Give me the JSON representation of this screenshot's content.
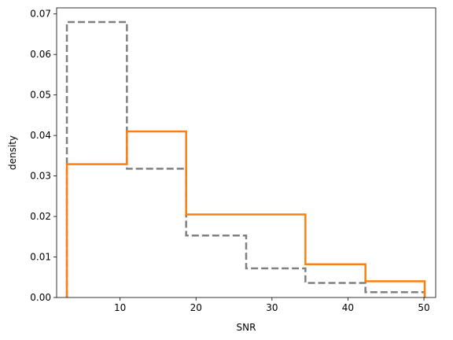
{
  "chart_data": {
    "type": "histogram",
    "xlabel": "SNR",
    "ylabel": "density",
    "xlim": [
      1.65,
      51.55
    ],
    "ylim": [
      0,
      0.0715
    ],
    "xticks": [
      10,
      20,
      30,
      40,
      50
    ],
    "yticks": [
      0.0,
      0.01,
      0.02,
      0.03,
      0.04,
      0.05,
      0.06,
      0.07
    ],
    "ytick_labels": [
      "0.00",
      "0.01",
      "0.02",
      "0.03",
      "0.04",
      "0.05",
      "0.06",
      "0.07"
    ],
    "grid": false,
    "series": [
      {
        "style": "dashed",
        "color": "#808080",
        "bin_edges": [
          3.0,
          10.9,
          18.7,
          26.6,
          34.4,
          42.3,
          50.1
        ],
        "values": [
          0.068,
          0.0318,
          0.0153,
          0.0072,
          0.0036,
          0.0013
        ]
      },
      {
        "style": "solid",
        "color": "#ff7f0e",
        "bin_edges": [
          3.0,
          10.9,
          18.7,
          34.4,
          42.3,
          50.1
        ],
        "values": [
          0.0329,
          0.041,
          0.0205,
          0.0082,
          0.004
        ]
      }
    ]
  }
}
